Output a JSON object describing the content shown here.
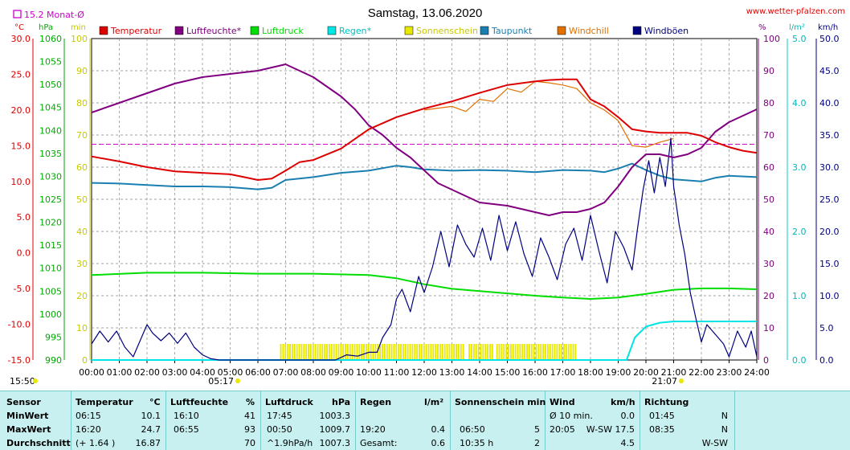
{
  "header": {
    "title": "Samstag, 13.06.2020",
    "site": "www.wetter-pfalzen.com",
    "monthly_avg": "15.2 Monat-Ø",
    "sunrise": "05:17",
    "sunset": "21:07",
    "bottom_left_time": "15:50"
  },
  "legend": [
    {
      "label": "Temperatur",
      "color": "#dd0000"
    },
    {
      "label": "Luftfeuchte*",
      "color": "#800080"
    },
    {
      "label": "Luftdruck",
      "color": "#00dd00"
    },
    {
      "label": "Regen*",
      "color": "#00e5e5"
    },
    {
      "label": "Sonnenschein",
      "color": "#e8e800"
    },
    {
      "label": "Taupunkt",
      "color": "#1a7fb0"
    },
    {
      "label": "Windchill",
      "color": "#e07000"
    },
    {
      "label": "Windböen",
      "color": "#000080"
    }
  ],
  "axes": {
    "units": {
      "temp": "°C",
      "press": "hPa",
      "min": "min",
      "hum": "%",
      "rain": "l/m²",
      "wind": "km/h"
    },
    "temp_ticks": [
      "30.0",
      "25.0",
      "20.0",
      "15.0",
      "10.0",
      "5.0",
      "0.0",
      "-5.0",
      "-10.0",
      "-15.0"
    ],
    "press_ticks": [
      "1060",
      "1055",
      "1050",
      "1045",
      "1040",
      "1035",
      "1030",
      "1025",
      "1020",
      "1015",
      "1010",
      "1005",
      "1000",
      "995",
      "990"
    ],
    "min_ticks": [
      "100",
      "90",
      "80",
      "70",
      "60",
      "50",
      "40",
      "30",
      "20",
      "10",
      "0"
    ],
    "hum_ticks": [
      "100",
      "90",
      "80",
      "70",
      "60",
      "50",
      "40",
      "30",
      "20",
      "10",
      "0"
    ],
    "rain_ticks": [
      "5.0",
      "4.0",
      "3.0",
      "2.0",
      "1.0",
      "0.0"
    ],
    "wind_ticks": [
      "50.0",
      "45.0",
      "40.0",
      "35.0",
      "30.0",
      "25.0",
      "20.0",
      "15.0",
      "10.0",
      "5.0",
      "0.0"
    ],
    "x_ticks": [
      "00:00",
      "01:00",
      "02:00",
      "03:00",
      "04:00",
      "05:00",
      "06:00",
      "07:00",
      "08:00",
      "09:00",
      "10:00",
      "11:00",
      "12:00",
      "13:00",
      "14:00",
      "15:00",
      "16:00",
      "17:00",
      "18:00",
      "19:00",
      "20:00",
      "21:00",
      "22:00",
      "23:00",
      "24:00"
    ]
  },
  "chart_data": {
    "type": "line",
    "title": "Samstag, 13.06.2020",
    "x_unit": "hour",
    "xlim": [
      0,
      24
    ],
    "monthly_avg_temp": 15.2,
    "series": [
      {
        "name": "Temperatur",
        "axis": "temp",
        "color": "#dd0000",
        "points": [
          [
            0,
            13.5
          ],
          [
            1,
            12.8
          ],
          [
            2,
            12.0
          ],
          [
            3,
            11.4
          ],
          [
            4,
            11.2
          ],
          [
            5,
            11.0
          ],
          [
            5.5,
            10.6
          ],
          [
            6,
            10.2
          ],
          [
            6.5,
            10.4
          ],
          [
            7,
            11.5
          ],
          [
            7.5,
            12.7
          ],
          [
            8,
            13.0
          ],
          [
            9,
            14.6
          ],
          [
            10,
            17.3
          ],
          [
            11,
            19.0
          ],
          [
            12,
            20.2
          ],
          [
            13,
            21.2
          ],
          [
            14,
            22.4
          ],
          [
            15,
            23.5
          ],
          [
            16,
            24.0
          ],
          [
            16.5,
            24.2
          ],
          [
            17,
            24.3
          ],
          [
            17.5,
            24.3
          ],
          [
            18,
            21.5
          ],
          [
            18.5,
            20.5
          ],
          [
            19,
            19.0
          ],
          [
            19.5,
            17.3
          ],
          [
            20,
            17.0
          ],
          [
            20.5,
            16.8
          ],
          [
            21,
            16.8
          ],
          [
            21.5,
            16.8
          ],
          [
            22,
            16.4
          ],
          [
            22.5,
            15.5
          ],
          [
            23,
            14.8
          ],
          [
            23.5,
            14.3
          ],
          [
            24,
            14.0
          ]
        ]
      },
      {
        "name": "Luftfeuchte*",
        "axis": "hum",
        "color": "#800080",
        "points": [
          [
            0,
            77
          ],
          [
            1,
            80
          ],
          [
            2,
            83
          ],
          [
            3,
            86
          ],
          [
            4,
            88
          ],
          [
            5,
            89
          ],
          [
            6,
            90
          ],
          [
            6.5,
            91
          ],
          [
            7,
            92
          ],
          [
            7.5,
            90
          ],
          [
            8,
            88
          ],
          [
            9,
            82
          ],
          [
            9.5,
            78
          ],
          [
            10,
            73
          ],
          [
            10.5,
            70
          ],
          [
            11,
            66
          ],
          [
            11.5,
            63
          ],
          [
            12,
            59
          ],
          [
            12.5,
            55
          ],
          [
            13,
            53
          ],
          [
            13.5,
            51
          ],
          [
            14,
            49
          ],
          [
            15,
            48
          ],
          [
            15.5,
            47
          ],
          [
            16,
            46
          ],
          [
            16.5,
            45
          ],
          [
            17,
            46
          ],
          [
            17.5,
            46
          ],
          [
            18,
            47
          ],
          [
            18.5,
            49
          ],
          [
            19,
            54
          ],
          [
            19.5,
            60
          ],
          [
            20,
            64
          ],
          [
            20.5,
            64
          ],
          [
            21,
            63
          ],
          [
            21.5,
            64
          ],
          [
            22,
            66
          ],
          [
            22.5,
            71
          ],
          [
            23,
            74
          ],
          [
            23.5,
            76
          ],
          [
            24,
            78
          ]
        ]
      },
      {
        "name": "Luftdruck",
        "axis": "press",
        "color": "#00dd00",
        "points": [
          [
            0,
            1008.5
          ],
          [
            2,
            1009.0
          ],
          [
            4,
            1009.0
          ],
          [
            6,
            1008.8
          ],
          [
            8,
            1008.8
          ],
          [
            10,
            1008.5
          ],
          [
            11,
            1007.8
          ],
          [
            12,
            1006.5
          ],
          [
            13,
            1005.5
          ],
          [
            14,
            1005.0
          ],
          [
            15,
            1004.5
          ],
          [
            16,
            1004.0
          ],
          [
            17,
            1003.6
          ],
          [
            18,
            1003.3
          ],
          [
            19,
            1003.6
          ],
          [
            20,
            1004.4
          ],
          [
            21,
            1005.3
          ],
          [
            22,
            1005.6
          ],
          [
            23,
            1005.6
          ],
          [
            24,
            1005.4
          ]
        ]
      },
      {
        "name": "Taupunkt",
        "axis": "temp",
        "color": "#1a7fb0",
        "points": [
          [
            0,
            9.8
          ],
          [
            1,
            9.7
          ],
          [
            2,
            9.5
          ],
          [
            3,
            9.3
          ],
          [
            4,
            9.3
          ],
          [
            5,
            9.2
          ],
          [
            6,
            8.9
          ],
          [
            6.5,
            9.1
          ],
          [
            7,
            10.2
          ],
          [
            8,
            10.6
          ],
          [
            9,
            11.2
          ],
          [
            10,
            11.5
          ],
          [
            11,
            12.2
          ],
          [
            11.5,
            12.0
          ],
          [
            12,
            11.7
          ],
          [
            13,
            11.5
          ],
          [
            14,
            11.6
          ],
          [
            15,
            11.5
          ],
          [
            16,
            11.3
          ],
          [
            17,
            11.6
          ],
          [
            18,
            11.5
          ],
          [
            18.5,
            11.3
          ],
          [
            19,
            11.8
          ],
          [
            19.5,
            12.5
          ],
          [
            20,
            11.6
          ],
          [
            20.5,
            10.8
          ],
          [
            21,
            10.3
          ],
          [
            22,
            10.0
          ],
          [
            22.5,
            10.5
          ],
          [
            23,
            10.8
          ],
          [
            24,
            10.6
          ]
        ]
      },
      {
        "name": "Windchill",
        "axis": "temp",
        "color": "#e07000",
        "points": [
          [
            12,
            20.0
          ],
          [
            13,
            20.5
          ],
          [
            13.5,
            19.8
          ],
          [
            14,
            21.5
          ],
          [
            14.5,
            21.2
          ],
          [
            15,
            23.0
          ],
          [
            15.5,
            22.5
          ],
          [
            16,
            24.0
          ],
          [
            16.5,
            23.8
          ],
          [
            17,
            23.5
          ],
          [
            17.5,
            23.0
          ],
          [
            18,
            21.0
          ],
          [
            18.5,
            20.0
          ],
          [
            19,
            18.5
          ],
          [
            19.5,
            15.0
          ],
          [
            20,
            14.8
          ],
          [
            20.5,
            15.5
          ],
          [
            21,
            16.0
          ]
        ]
      },
      {
        "name": "Windböen",
        "axis": "wind",
        "color": "#000080",
        "points": [
          [
            0,
            2.5
          ],
          [
            0.3,
            4.5
          ],
          [
            0.6,
            2.8
          ],
          [
            0.9,
            4.5
          ],
          [
            1.2,
            2.0
          ],
          [
            1.5,
            0.5
          ],
          [
            1.8,
            3.5
          ],
          [
            2.0,
            5.5
          ],
          [
            2.2,
            4.2
          ],
          [
            2.5,
            3.0
          ],
          [
            2.8,
            4.2
          ],
          [
            3.1,
            2.6
          ],
          [
            3.4,
            4.2
          ],
          [
            3.7,
            2.0
          ],
          [
            4.0,
            0.8
          ],
          [
            4.3,
            0.2
          ],
          [
            4.6,
            0
          ],
          [
            5.0,
            0
          ],
          [
            8.8,
            0
          ],
          [
            9.2,
            0.8
          ],
          [
            9.6,
            0.6
          ],
          [
            10,
            1.2
          ],
          [
            10.3,
            1.2
          ],
          [
            10.5,
            3.5
          ],
          [
            10.8,
            5.5
          ],
          [
            11.0,
            9.5
          ],
          [
            11.2,
            11.0
          ],
          [
            11.5,
            7.5
          ],
          [
            11.8,
            13.0
          ],
          [
            12.0,
            10.5
          ],
          [
            12.3,
            14.5
          ],
          [
            12.6,
            20.0
          ],
          [
            12.9,
            14.5
          ],
          [
            13.2,
            21.0
          ],
          [
            13.5,
            18.0
          ],
          [
            13.8,
            16.0
          ],
          [
            14.1,
            20.5
          ],
          [
            14.4,
            15.5
          ],
          [
            14.7,
            22.5
          ],
          [
            15.0,
            17.0
          ],
          [
            15.3,
            21.5
          ],
          [
            15.6,
            16.5
          ],
          [
            15.9,
            13.0
          ],
          [
            16.2,
            19.0
          ],
          [
            16.5,
            16.0
          ],
          [
            16.8,
            12.5
          ],
          [
            17.1,
            18.0
          ],
          [
            17.4,
            20.5
          ],
          [
            17.7,
            15.5
          ],
          [
            18.0,
            22.5
          ],
          [
            18.3,
            17.0
          ],
          [
            18.6,
            12.0
          ],
          [
            18.9,
            20.0
          ],
          [
            19.2,
            17.5
          ],
          [
            19.5,
            14.0
          ],
          [
            19.7,
            20.5
          ],
          [
            19.9,
            26.5
          ],
          [
            20.1,
            31.0
          ],
          [
            20.3,
            26.0
          ],
          [
            20.5,
            31.5
          ],
          [
            20.7,
            27.0
          ],
          [
            20.9,
            34.5
          ],
          [
            21.0,
            27.0
          ],
          [
            21.2,
            21.0
          ],
          [
            21.4,
            16.5
          ],
          [
            21.6,
            10.5
          ],
          [
            21.8,
            6.5
          ],
          [
            22.0,
            2.8
          ],
          [
            22.2,
            5.5
          ],
          [
            22.5,
            4.0
          ],
          [
            22.8,
            2.5
          ],
          [
            23.0,
            0.5
          ],
          [
            23.3,
            4.5
          ],
          [
            23.6,
            2.0
          ],
          [
            23.8,
            4.5
          ],
          [
            24.0,
            0.5
          ]
        ]
      },
      {
        "name": "Regen*",
        "axis": "rain",
        "color": "#00e5e5",
        "points": [
          [
            0,
            0
          ],
          [
            19.3,
            0
          ],
          [
            19.6,
            0.35
          ],
          [
            20.0,
            0.52
          ],
          [
            20.5,
            0.58
          ],
          [
            21.0,
            0.6
          ],
          [
            22,
            0.6
          ],
          [
            24,
            0.6
          ]
        ]
      }
    ],
    "sunshine_bars": {
      "name": "Sonnenschein",
      "axis": "min",
      "color": "#e8e800",
      "value": 5,
      "ranges": [
        [
          6.8,
          13.45
        ],
        [
          13.6,
          14.5
        ],
        [
          14.6,
          17.5
        ]
      ]
    }
  },
  "stats": {
    "headers": {
      "sensor": "Sensor",
      "temp": "Temperatur",
      "temp_unit": "°C",
      "hum": "Luftfeuchte",
      "hum_unit": "%",
      "press": "Luftdruck",
      "press_unit": "hPa",
      "rain": "Regen",
      "rain_unit": "l/m²",
      "sun": "Sonnenschein min",
      "wind": "Wind",
      "wind_unit": "km/h",
      "dir": "Richtung"
    },
    "rows": [
      {
        "label": "MinWert",
        "temp_time": "06:15",
        "temp_val": "10.1",
        "hum_time": "16:10",
        "hum_val": "41",
        "press_time": "17:45",
        "press_val": "1003.3",
        "rain_time": "",
        "rain_val": "",
        "sun_time": "",
        "sun_val": "",
        "wind_time": "Ø 10 min.",
        "wind_val": "0.0",
        "dir_time": "01:45",
        "dir_val": "N"
      },
      {
        "label": "MaxWert",
        "temp_time": "16:20",
        "temp_val": "24.7",
        "hum_time": "06:55",
        "hum_val": "93",
        "press_time": "00:50",
        "press_val": "1009.7",
        "rain_time": "19:20",
        "rain_val": "0.4",
        "sun_time": "06:50",
        "sun_val": "5",
        "wind_time": "20:05",
        "wind_val": "W-SW 17.5",
        "dir_time": "08:35",
        "dir_val": "N"
      },
      {
        "label": "Durchschnitt",
        "temp_time": "(+ 1.64 )",
        "temp_val": "16.87",
        "hum_time": "",
        "hum_val": "70",
        "press_time": "^1.9hPa/h",
        "press_val": "1007.3",
        "rain_time": "Gesamt:",
        "rain_val": "0.6",
        "sun_time": "10:35 h",
        "sun_val": "2",
        "wind_time": "",
        "wind_val": "4.5",
        "dir_time": "",
        "dir_val": "W-SW"
      }
    ]
  }
}
